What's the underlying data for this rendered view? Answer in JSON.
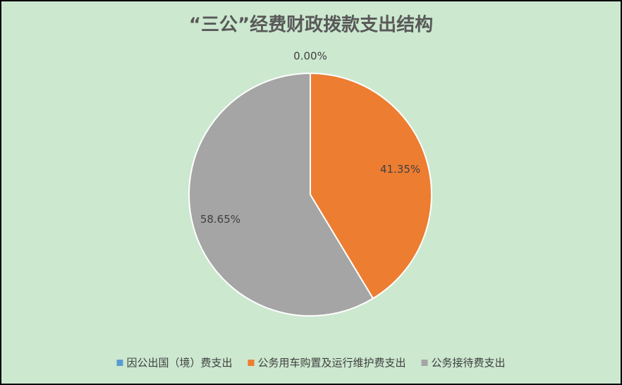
{
  "chart_data": {
    "type": "pie",
    "title": "“三公”经费财政拨款支出结构",
    "categories": [
      "因公出国（境）费支出",
      "公务用车购置及运行维护费支出",
      "公务接待费支出"
    ],
    "values": [
      0,
      41.35,
      58.65
    ],
    "value_labels": [
      "0.00%",
      "41.35%",
      "58.65%"
    ],
    "colors": [
      "#5b9bd5",
      "#ed7d31",
      "#a5a5a5"
    ],
    "legend": "bottom"
  }
}
